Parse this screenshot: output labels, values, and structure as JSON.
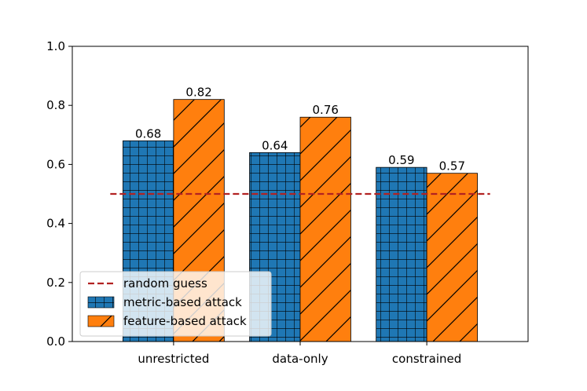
{
  "chart_data": {
    "type": "bar",
    "title": "",
    "xlabel": "",
    "ylabel": "",
    "ylim": [
      0,
      1.0
    ],
    "yticks": [
      0.0,
      0.2,
      0.4,
      0.6,
      0.8,
      1.0
    ],
    "ytick_labels": [
      "0.0",
      "0.2",
      "0.4",
      "0.6",
      "0.8",
      "1.0"
    ],
    "categories": [
      "unrestricted",
      "data-only",
      "constrained"
    ],
    "series": [
      {
        "name": "metric-based attack",
        "values": [
          0.68,
          0.64,
          0.59
        ],
        "labels": [
          "0.68",
          "0.64",
          "0.59"
        ],
        "color": "#1f77b4",
        "hatch": "grid"
      },
      {
        "name": "feature-based attack",
        "values": [
          0.82,
          0.76,
          0.57
        ],
        "labels": [
          "0.82",
          "0.76",
          "0.57"
        ],
        "color": "#ff7f0e",
        "hatch": "diagonal"
      }
    ],
    "reference_line": {
      "name": "random guess",
      "value": 0.5,
      "color": "#b22222",
      "style": "dashed"
    },
    "legend": {
      "position": "lower-left",
      "entries": [
        "random guess",
        "metric-based attack",
        "feature-based attack"
      ]
    },
    "grid": false
  }
}
